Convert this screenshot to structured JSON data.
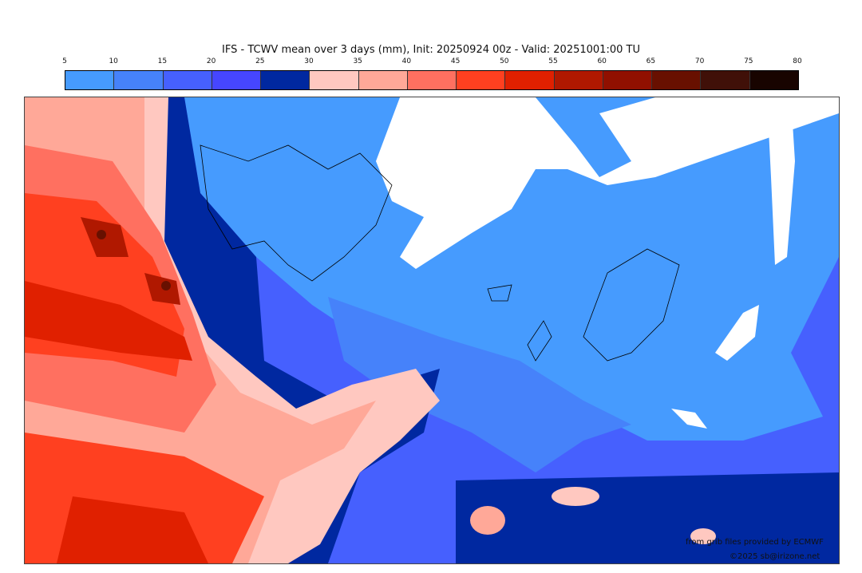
{
  "title": "IFS - TCWV mean over 3 days (mm), Init: 20250924 00z - Valid: 20251001:00 TU",
  "colorbar": {
    "ticks": [
      "5",
      "10",
      "15",
      "20",
      "25",
      "30",
      "35",
      "40",
      "45",
      "50",
      "55",
      "60",
      "65",
      "70",
      "75",
      "80"
    ],
    "colors": [
      "#469bfe",
      "#4682fa",
      "#4660fe",
      "#4646ff",
      "#0028a0",
      "#ffc8c0",
      "#ffa898",
      "#ff7060",
      "#ff4020",
      "#e02000",
      "#b01800",
      "#901000",
      "#681000",
      "#401008",
      "#180400"
    ]
  },
  "credits": {
    "source": "from grib files provided by ECMWF",
    "copyright": "©2025 sb@irizone.net"
  }
}
